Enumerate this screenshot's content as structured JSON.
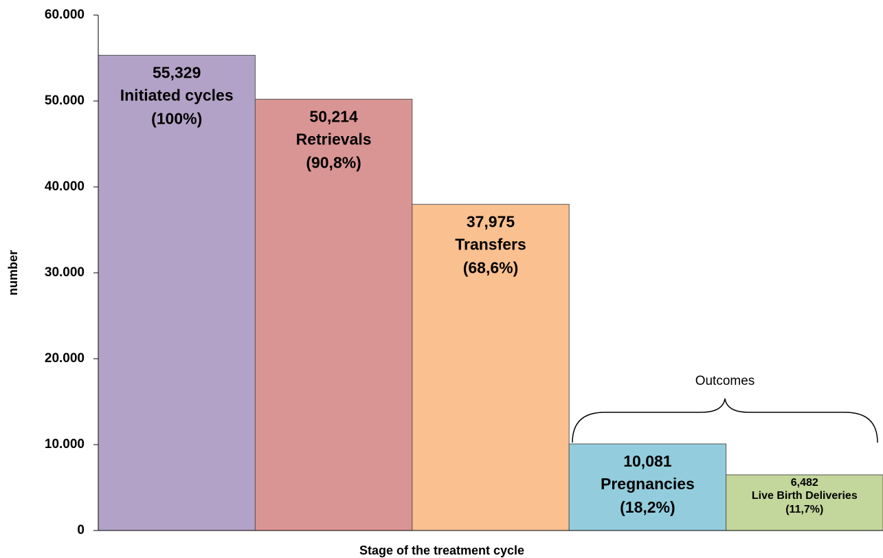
{
  "chart_data": {
    "type": "bar",
    "x_label": "Stage of the treatment cycle",
    "y_label": "number",
    "categories": [
      "Initiated cycles",
      "Retrievals",
      "Transfers",
      "Pregnancies",
      "Live Birth Deliveries"
    ],
    "values": [
      55329,
      50214,
      37975,
      10081,
      6482
    ],
    "value_labels": [
      "55,329",
      "50,214",
      "37,975",
      "10,081",
      "6,482"
    ],
    "shares": [
      "(100%)",
      "(90,8%)",
      "(68,6%)",
      "(18,2%)",
      "(11,7%)"
    ],
    "colors": [
      "#b3a2c7",
      "#d99594",
      "#fac090",
      "#93cddd",
      "#c3d69b"
    ],
    "annotation": "Outcomes",
    "ylim": [
      0,
      60000
    ],
    "yticks": [
      {
        "value": 0,
        "label": "0"
      },
      {
        "value": 10000,
        "label": "10.000"
      },
      {
        "value": 20000,
        "label": "20.000"
      },
      {
        "value": 30000,
        "label": "30.000"
      },
      {
        "value": 40000,
        "label": "40.000"
      },
      {
        "value": 50000,
        "label": "50.000"
      },
      {
        "value": 60000,
        "label": "60.000"
      }
    ],
    "grid": false
  }
}
